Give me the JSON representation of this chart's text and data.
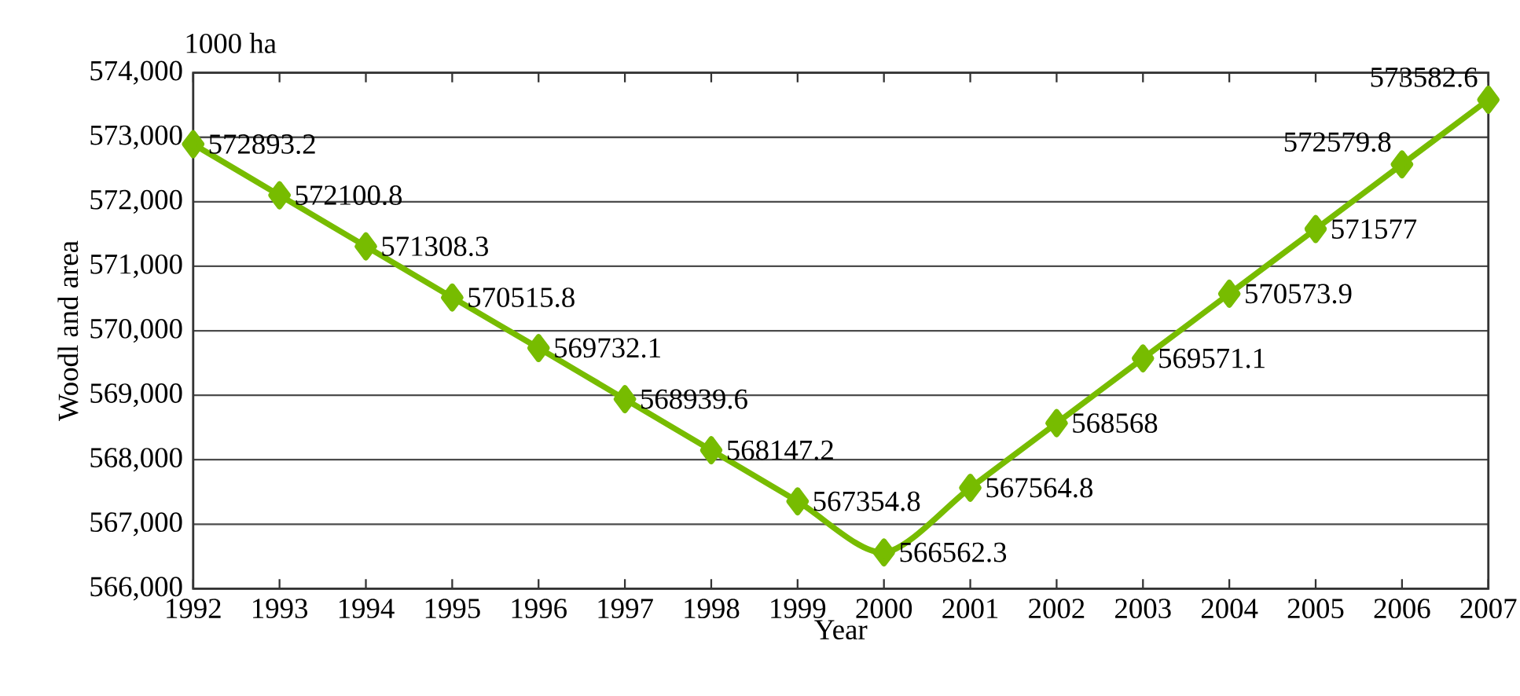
{
  "chart_data": {
    "type": "line",
    "xlabel": "Year",
    "ylabel": "Woodl and area",
    "annotations": [
      "1000 ha"
    ],
    "categories": [
      "1992",
      "1993",
      "1994",
      "1995",
      "1996",
      "1997",
      "1998",
      "1999",
      "2000",
      "2001",
      "2002",
      "2003",
      "2004",
      "2005",
      "2006",
      "2007"
    ],
    "values": [
      572893.2,
      572100.8,
      571308.3,
      570515.8,
      569732.1,
      568939.6,
      568147.2,
      567354.8,
      566562.3,
      567564.8,
      568568,
      569571.1,
      570573.9,
      571577,
      572579.8,
      573582.6
    ],
    "color": "#77bc00",
    "marker": "diamond",
    "line_style": "solid",
    "data_labels": true,
    "grid": "y",
    "ylim": [
      566000,
      574000
    ],
    "yticks": [
      {
        "value": 566000,
        "label": "566,000"
      },
      {
        "value": 567000,
        "label": "567,000"
      },
      {
        "value": 568000,
        "label": "568,000"
      },
      {
        "value": 569000,
        "label": "569,000"
      },
      {
        "value": 570000,
        "label": "570,000"
      },
      {
        "value": 571000,
        "label": "571,000"
      },
      {
        "value": 572000,
        "label": "572,000"
      },
      {
        "value": 573000,
        "label": "573,000"
      },
      {
        "value": 574000,
        "label": "574,000"
      }
    ]
  }
}
